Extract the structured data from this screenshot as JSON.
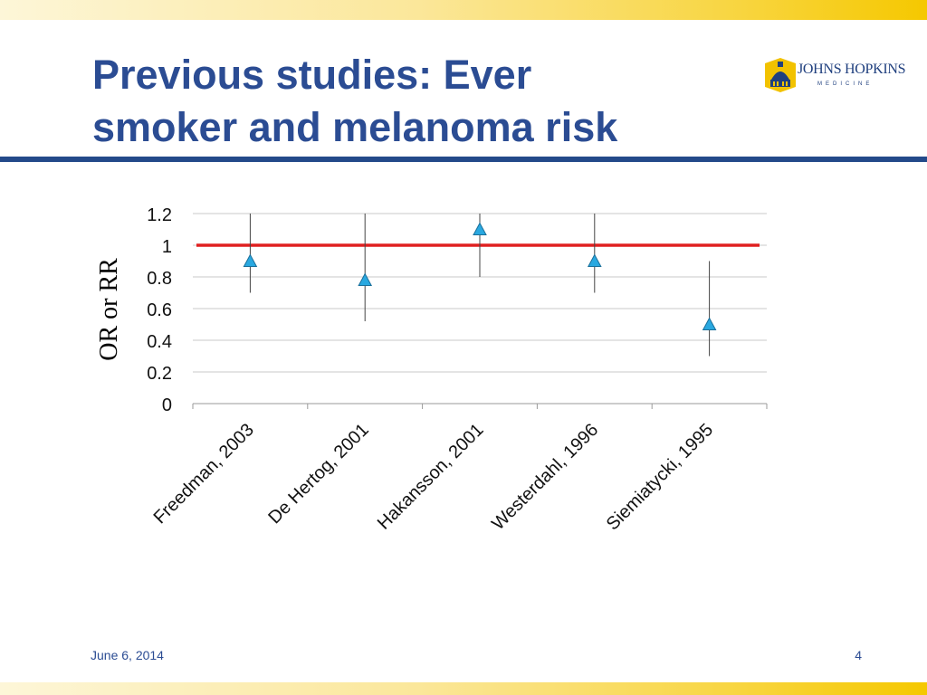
{
  "slide": {
    "title_line1": "Previous studies: Ever",
    "title_line2": "smoker and melanoma risk",
    "footer_date": "June 6, 2014",
    "page_number": "4"
  },
  "logo": {
    "name": "JOHNS HOPKINS",
    "sub": "MEDICINE",
    "icon": "dome-icon"
  },
  "colors": {
    "title": "#2b4c93",
    "rule": "#234a8a",
    "reference_line": "#e02020",
    "marker": "#29a8e0",
    "accent_band": "#f5c800"
  },
  "chart_data": {
    "type": "scatter",
    "title": "",
    "xlabel": "",
    "ylabel": "OR or RR",
    "ylim": [
      0,
      1.2
    ],
    "yticks": [
      "0",
      "0.2",
      "0.4",
      "0.6",
      "0.8",
      "1",
      "1.2"
    ],
    "ytick_values": [
      0,
      0.2,
      0.4,
      0.6,
      0.8,
      1.0,
      1.2
    ],
    "grid": true,
    "reference_line": 1.0,
    "categories": [
      "Freedman, 2003",
      "De Hertog, 2001",
      "Hakansson, 2001",
      "Westerdahl, 1996",
      "Siemiatycki, 1995"
    ],
    "values": [
      0.9,
      0.78,
      1.1,
      0.9,
      0.5
    ],
    "ci_lower": [
      0.7,
      0.52,
      0.8,
      0.7,
      0.3
    ],
    "ci_upper": [
      1.2,
      1.2,
      1.2,
      1.2,
      0.9
    ]
  }
}
